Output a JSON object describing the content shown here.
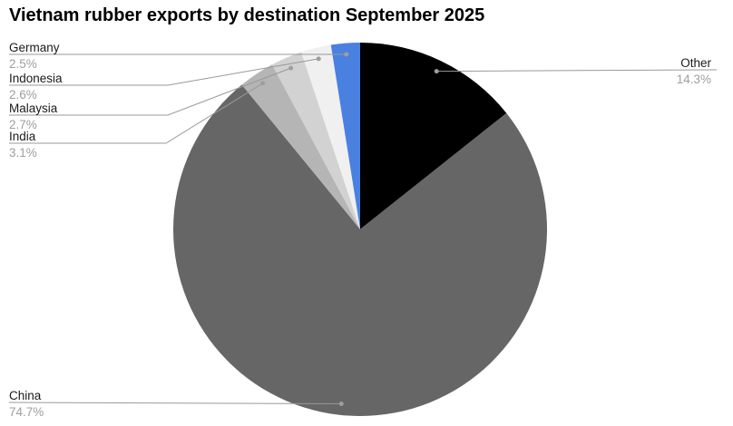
{
  "page": {
    "background": "#ffffff"
  },
  "chart_data": {
    "type": "pie",
    "title": "Vietnam rubber exports by destination September 2025",
    "legend_position": "none",
    "label_style": "outside-callouts-with-leader-lines",
    "total_percent": 99.9,
    "slices": [
      {
        "label": "Other",
        "value": 14.3,
        "pct_label": "14.3%",
        "color": "#000000"
      },
      {
        "label": "China",
        "value": 74.7,
        "pct_label": "74.7%",
        "color": "#666666"
      },
      {
        "label": "India",
        "value": 3.1,
        "pct_label": "3.1%",
        "color": "#b5b5b5"
      },
      {
        "label": "Malaysia",
        "value": 2.7,
        "pct_label": "2.7%",
        "color": "#d2d2d2"
      },
      {
        "label": "Indonesia",
        "value": 2.6,
        "pct_label": "2.6%",
        "color": "#f0f0f0"
      },
      {
        "label": "Germany",
        "value": 2.5,
        "pct_label": "2.5%",
        "color": "#4a81e0"
      }
    ],
    "colors": {
      "title_text": "#000000",
      "label_text": "#1a1a1a",
      "pct_text": "#9e9e9e",
      "leader_line": "#999999",
      "leader_dot": "#9e9e9e"
    }
  }
}
